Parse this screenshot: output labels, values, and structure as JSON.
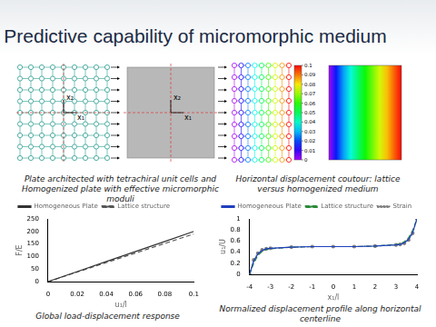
{
  "slide_title": "Predictive capability of micromorphic medium",
  "figure_labels": {
    "axes": [
      "x₁",
      "x₂"
    ]
  },
  "captions": {
    "plates": "Plate architected with tetrachiral unit cells and Homogenized plate with effective micromorphic moduli",
    "contour": "Horizontal displacement coutour: lattice versus homogenized medium",
    "load": "Global load-displacement response",
    "profile": "Normalized displacement profile along horizontal centerline"
  },
  "colorbar": {
    "range": [
      0,
      0.1
    ],
    "ticks": [
      0,
      0.01,
      0.02,
      0.03,
      0.04,
      0.05,
      0.06,
      0.07,
      0.08,
      0.09,
      0.1
    ]
  },
  "chart_data": [
    {
      "type": "line",
      "x_label": "u₁/l",
      "y_label": "F/E",
      "x": [
        0,
        0.02,
        0.04,
        0.06,
        0.08,
        0.1
      ],
      "series": [
        {
          "name": "Homogeneous Plate",
          "color": "#333333",
          "line_style": "solid",
          "marker": "none",
          "values": [
            0,
            40,
            80,
            120,
            160,
            200
          ]
        },
        {
          "name": "Lattice structure",
          "color": "#555555",
          "line_style": "dashed",
          "marker": "none",
          "values": [
            0,
            38,
            76,
            114,
            152,
            190
          ]
        }
      ],
      "xlim": [
        0,
        0.1
      ],
      "xticks": [
        0,
        0.02,
        0.04,
        0.06,
        0.08,
        0.1
      ],
      "ylim": [
        0,
        250
      ],
      "yticks": [
        0,
        50,
        100,
        150,
        200,
        250
      ],
      "grid": false,
      "legend": "top left"
    },
    {
      "type": "line",
      "x_label": "x₁/l",
      "y_label": "u₁/U",
      "x": [
        -4,
        -3.8,
        -3.6,
        -3.4,
        -3.2,
        -3,
        -2,
        -1,
        0,
        1,
        2,
        3,
        3.2,
        3.4,
        3.6,
        3.8,
        4
      ],
      "series": [
        {
          "name": "Homogeneous Plate",
          "color": "#1f3fbf",
          "line_style": "solid",
          "marker": "none",
          "values": [
            0,
            0.24,
            0.37,
            0.43,
            0.46,
            0.47,
            0.49,
            0.5,
            0.5,
            0.5,
            0.51,
            0.53,
            0.54,
            0.57,
            0.63,
            0.76,
            1
          ]
        },
        {
          "name": "Lattice structure",
          "color": "#2a8a3a",
          "line_style": "dashed",
          "marker": "none",
          "values": [
            0,
            0.2,
            0.34,
            0.41,
            0.45,
            0.46,
            0.49,
            0.5,
            0.5,
            0.5,
            0.51,
            0.54,
            0.55,
            0.59,
            0.66,
            0.8,
            1
          ]
        },
        {
          "name": "Strain",
          "color": "#7f7f7f",
          "line_style": "dotted",
          "marker": "circle",
          "values": [
            0,
            0.26,
            0.38,
            0.44,
            0.46,
            0.47,
            0.49,
            0.5,
            0.5,
            0.5,
            0.51,
            0.53,
            0.54,
            0.56,
            0.62,
            0.74,
            1
          ]
        }
      ],
      "xlim": [
        -4,
        4
      ],
      "xticks": [
        -4,
        -3,
        -2,
        -1,
        0,
        1,
        2,
        3,
        4
      ],
      "ylim": [
        0,
        1
      ],
      "yticks": [
        0,
        0.2,
        0.4,
        0.6,
        0.8,
        1
      ],
      "grid": false,
      "legend": "top left"
    }
  ]
}
